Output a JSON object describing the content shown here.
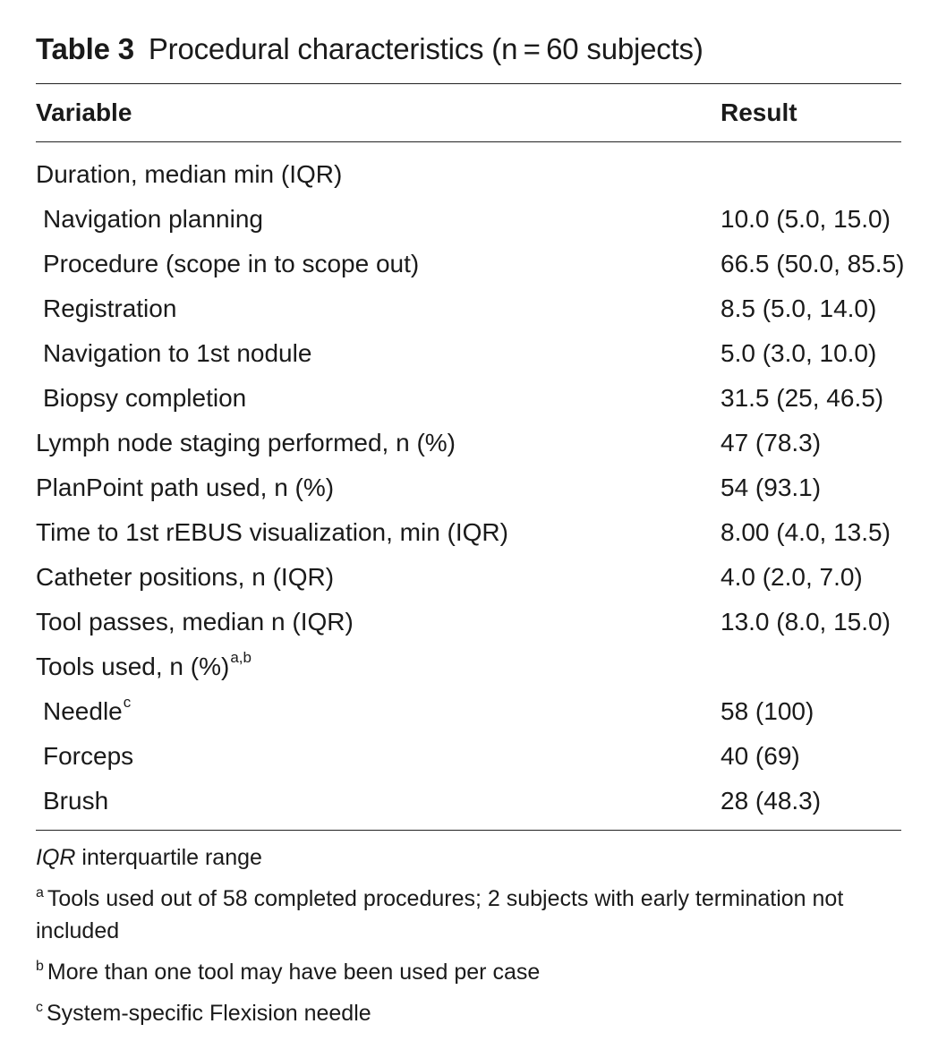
{
  "caption": {
    "label": "Table 3",
    "text": "Procedural characteristics (n = 60 subjects)"
  },
  "table": {
    "headers": {
      "variable": "Variable",
      "result": "Result"
    },
    "rows": [
      {
        "variable": "Duration, median min (IQR)",
        "result": "",
        "indent": false,
        "sup": ""
      },
      {
        "variable": "Navigation planning",
        "result": "10.0 (5.0, 15.0)",
        "indent": true,
        "sup": ""
      },
      {
        "variable": "Procedure (scope in to scope out)",
        "result": "66.5 (50.0, 85.5)",
        "indent": true,
        "sup": ""
      },
      {
        "variable": "Registration",
        "result": "8.5 (5.0, 14.0)",
        "indent": true,
        "sup": ""
      },
      {
        "variable": "Navigation to 1st nodule",
        "result": "5.0 (3.0, 10.0)",
        "indent": true,
        "sup": ""
      },
      {
        "variable": "Biopsy completion",
        "result": "31.5 (25, 46.5)",
        "indent": true,
        "sup": ""
      },
      {
        "variable": "Lymph node staging performed, n (%)",
        "result": "47 (78.3)",
        "indent": false,
        "sup": ""
      },
      {
        "variable": "PlanPoint path used, n (%)",
        "result": "54 (93.1)",
        "indent": false,
        "sup": ""
      },
      {
        "variable": "Time to 1st rEBUS visualization, min (IQR)",
        "result": "8.00 (4.0, 13.5)",
        "indent": false,
        "sup": ""
      },
      {
        "variable": "Catheter positions, n (IQR)",
        "result": "4.0 (2.0, 7.0)",
        "indent": false,
        "sup": ""
      },
      {
        "variable": "Tool passes, median n (IQR)",
        "result": "13.0 (8.0, 15.0)",
        "indent": false,
        "sup": ""
      },
      {
        "variable": "Tools used, n (%)",
        "result": "",
        "indent": false,
        "sup": "a,b"
      },
      {
        "variable": "Needle",
        "result": "58 (100)",
        "indent": true,
        "sup": "c"
      },
      {
        "variable": "Forceps",
        "result": "40 (69)",
        "indent": true,
        "sup": ""
      },
      {
        "variable": "Brush",
        "result": "28 (48.3)",
        "indent": true,
        "sup": ""
      }
    ]
  },
  "footnotes": {
    "abbreviation": {
      "term": "IQR",
      "text": " interquartile range"
    },
    "notes": [
      {
        "mark": "a",
        "text": "Tools used out of 58 completed procedures; 2 subjects with early termination not included"
      },
      {
        "mark": "b",
        "text": "More than one tool may have been used per case"
      },
      {
        "mark": "c",
        "text": "System-specific Flexision needle"
      }
    ]
  }
}
